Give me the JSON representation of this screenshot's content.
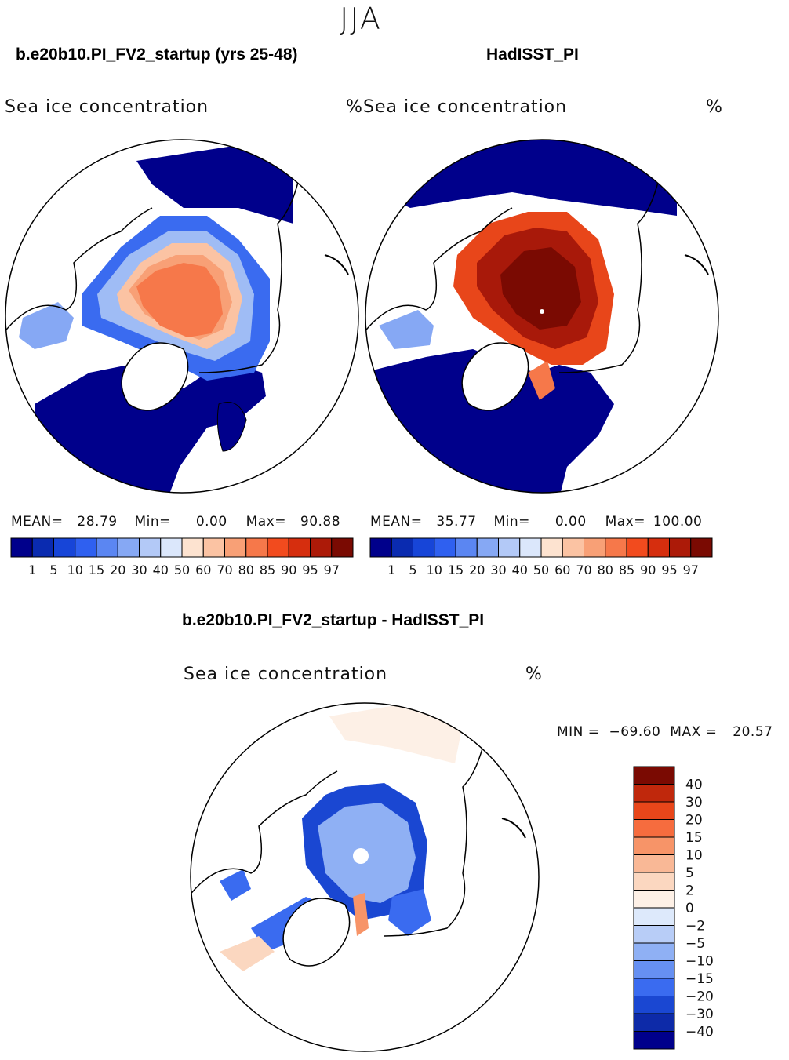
{
  "season": "JJA",
  "panels": [
    {
      "title": "b.e20b10.PI_FV2_startup (yrs 25-48)",
      "variable": "Sea ice concentration",
      "unit": "%",
      "mean_label": "MEAN=",
      "mean": "28.79",
      "min_label": "Min=",
      "min": "0.00",
      "max_label": "Max=",
      "max": "90.88"
    },
    {
      "title": "HadISST_PI",
      "variable": "Sea ice concentration",
      "unit": "%",
      "mean_label": "MEAN=",
      "mean": "35.77",
      "min_label": "Min=",
      "min": "0.00",
      "max_label": "Max=",
      "max": "100.00"
    }
  ],
  "colorbar_levels": [
    "1",
    "5",
    "10",
    "15",
    "20",
    "30",
    "40",
    "50",
    "60",
    "70",
    "80",
    "85",
    "90",
    "95",
    "97"
  ],
  "colorbar_colors": [
    "#00008b",
    "#0a2bb0",
    "#1745d8",
    "#2f60f0",
    "#5b86f2",
    "#86a8f4",
    "#b3c9f7",
    "#dbe7fb",
    "#fde3d0",
    "#fbc3a3",
    "#f8a076",
    "#f6784a",
    "#f24b1e",
    "#d62e0e",
    "#ac1a08",
    "#7a0a02"
  ],
  "difference": {
    "title": "b.e20b10.PI_FV2_startup - HadISST_PI",
    "variable": "Sea ice concentration",
    "unit": "%",
    "min_label": "MIN =",
    "min": "−69.60",
    "max_label": "MAX =",
    "max": "20.57",
    "levels": [
      "40",
      "30",
      "20",
      "15",
      "10",
      "5",
      "2",
      "0",
      "−2",
      "−5",
      "−10",
      "−15",
      "−20",
      "−30",
      "−40"
    ],
    "colors": [
      "#7a0a02",
      "#c0280c",
      "#e8461a",
      "#f66c3e",
      "#f79468",
      "#f9b896",
      "#fbd7c0",
      "#fdf0e6",
      "#dde9fb",
      "#b8cdf7",
      "#8fb0f4",
      "#6690f2",
      "#3a6bf0",
      "#1a47d2",
      "#0d2aa8",
      "#00008b"
    ]
  }
}
